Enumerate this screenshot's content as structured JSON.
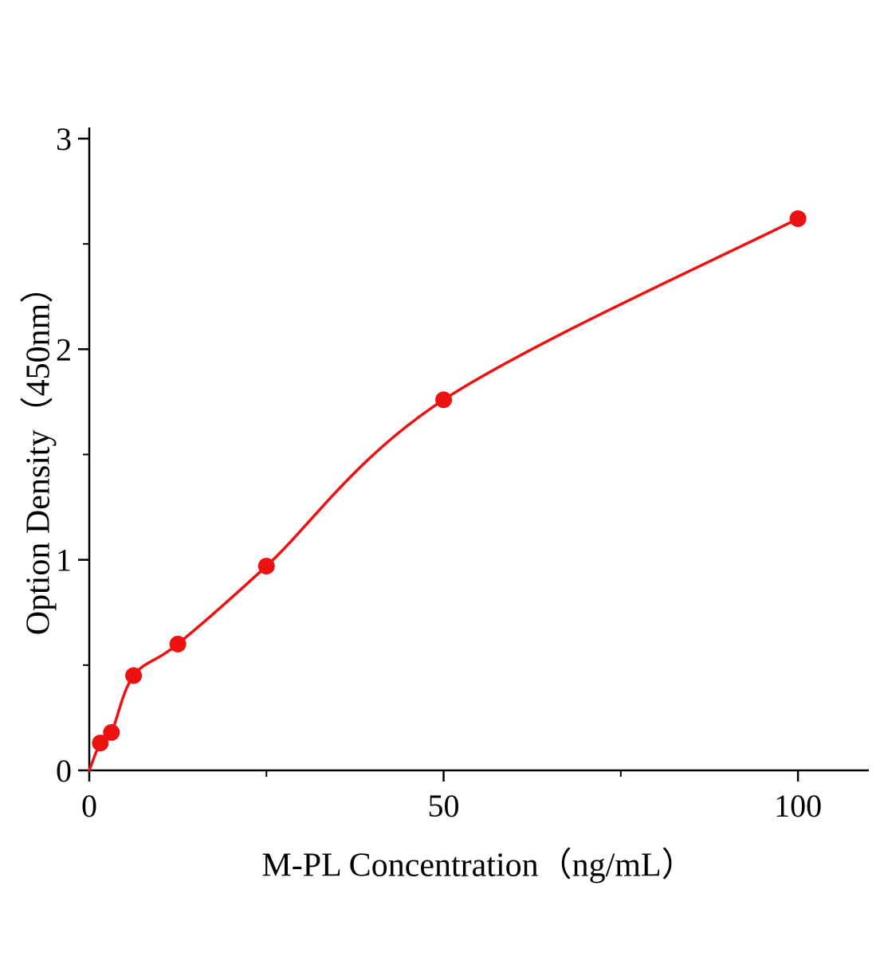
{
  "figure": {
    "background": "#ffffff"
  },
  "chart_data": {
    "type": "scatter",
    "title": "",
    "xlabel": "M-PL Concentration（ng/mL）",
    "ylabel": "Option Density（450nm）",
    "x": [
      1.56,
      3.125,
      6.25,
      12.5,
      25,
      50,
      100
    ],
    "y": [
      0.13,
      0.18,
      0.45,
      0.6,
      0.97,
      1.76,
      2.62
    ],
    "curve_start_x": 0,
    "curve_start_y": 0,
    "fit": "smooth saturating curve through points",
    "xlim": [
      0,
      110
    ],
    "ylim": [
      0,
      3
    ],
    "x_ticks": [
      0,
      50,
      100
    ],
    "x_minor_ticks": [
      25,
      75
    ],
    "y_ticks": [
      0,
      1,
      2,
      3
    ],
    "y_minor_ticks": [
      0.5,
      1.5,
      2.5
    ],
    "x_tick_labels": [
      "0",
      "50",
      "100"
    ],
    "y_tick_labels": [
      "0",
      "1",
      "2",
      "3"
    ],
    "point_color": "#ee1111",
    "curve_color": "#ee1111",
    "axis_color": "#000000",
    "grid": "off",
    "legend": "none"
  }
}
